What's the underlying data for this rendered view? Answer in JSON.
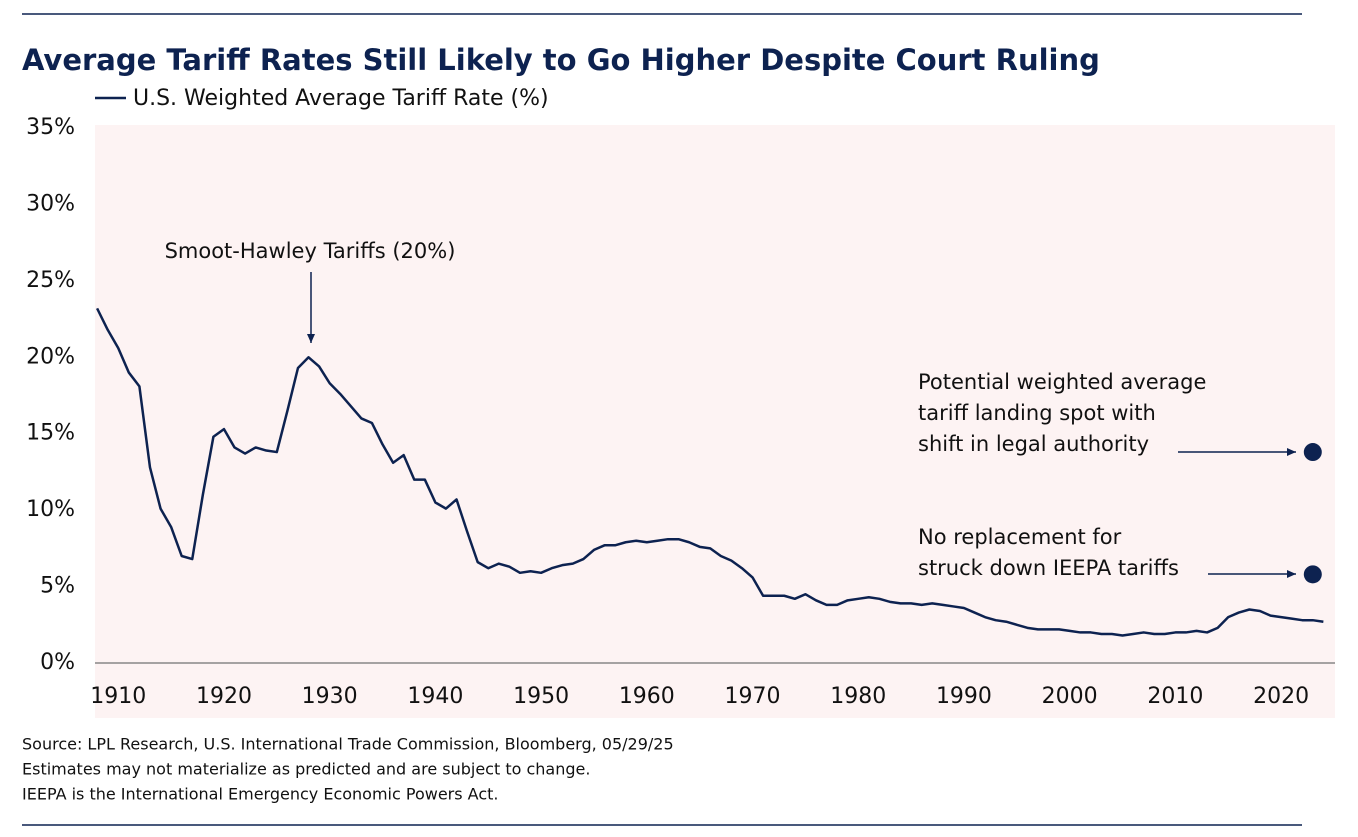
{
  "chart_data": {
    "type": "line",
    "title": "Average Tariff Rates Still Likely to Go Higher Despite Court Ruling",
    "x": [
      1908,
      1909,
      1910,
      1911,
      1912,
      1913,
      1914,
      1915,
      1916,
      1917,
      1918,
      1919,
      1920,
      1921,
      1922,
      1923,
      1924,
      1925,
      1926,
      1927,
      1928,
      1929,
      1930,
      1931,
      1932,
      1933,
      1934,
      1935,
      1936,
      1937,
      1938,
      1939,
      1940,
      1941,
      1942,
      1943,
      1944,
      1945,
      1946,
      1947,
      1948,
      1949,
      1950,
      1951,
      1952,
      1953,
      1954,
      1955,
      1956,
      1957,
      1958,
      1959,
      1960,
      1961,
      1962,
      1963,
      1964,
      1965,
      1966,
      1967,
      1968,
      1969,
      1970,
      1971,
      1972,
      1973,
      1974,
      1975,
      1976,
      1977,
      1978,
      1979,
      1980,
      1981,
      1982,
      1983,
      1984,
      1985,
      1986,
      1987,
      1988,
      1989,
      1990,
      1991,
      1992,
      1993,
      1994,
      1995,
      1996,
      1997,
      1998,
      1999,
      2000,
      2001,
      2002,
      2003,
      2004,
      2005,
      2006,
      2007,
      2008,
      2009,
      2010,
      2011,
      2012,
      2013,
      2014,
      2015,
      2016,
      2017,
      2018,
      2019,
      2020,
      2021,
      2022,
      2023,
      2024
    ],
    "series": [
      {
        "name": "U.S. Weighted Average Tariff Rate (%)",
        "color": "#0d2250",
        "values": [
          23.2,
          21.8,
          20.6,
          19.0,
          18.1,
          12.8,
          10.1,
          8.9,
          7.0,
          6.8,
          11.0,
          14.8,
          15.3,
          14.1,
          13.7,
          14.1,
          13.9,
          13.8,
          16.5,
          19.3,
          20.0,
          19.4,
          18.3,
          17.6,
          16.8,
          16.0,
          15.7,
          14.3,
          13.1,
          13.6,
          12.0,
          12.0,
          10.5,
          10.1,
          10.7,
          8.6,
          6.6,
          6.2,
          6.5,
          6.3,
          5.9,
          6.0,
          5.9,
          6.2,
          6.4,
          6.5,
          6.8,
          7.4,
          7.7,
          7.7,
          7.9,
          8.0,
          7.9,
          8.0,
          8.1,
          8.1,
          7.9,
          7.6,
          7.5,
          7.0,
          6.7,
          6.2,
          5.6,
          4.4,
          4.4,
          4.4,
          4.2,
          4.5,
          4.1,
          3.8,
          3.8,
          4.1,
          4.2,
          4.3,
          4.2,
          4.0,
          3.9,
          3.9,
          3.8,
          3.9,
          3.8,
          3.7,
          3.6,
          3.3,
          3.0,
          2.8,
          2.7,
          2.5,
          2.3,
          2.2,
          2.2,
          2.2,
          2.1,
          2.0,
          2.0,
          1.9,
          1.9,
          1.8,
          1.9,
          2.0,
          1.9,
          1.9,
          2.0,
          2.0,
          2.1,
          2.0,
          2.3,
          3.0,
          3.3,
          3.5,
          3.4,
          3.1,
          3.0,
          2.9,
          2.8,
          2.8,
          2.7
        ]
      }
    ],
    "xlim": [
      1907.8,
      2025.1
    ],
    "xticks": [
      1910,
      1920,
      1930,
      1940,
      1950,
      1960,
      1970,
      1980,
      1990,
      2000,
      2010,
      2020
    ],
    "ylim": [
      0,
      35
    ],
    "yticks": [
      {
        "value": 0,
        "label": "0%"
      },
      {
        "value": 5,
        "label": "5%"
      },
      {
        "value": 10,
        "label": "10%"
      },
      {
        "value": 15,
        "label": "15%"
      },
      {
        "value": 20,
        "label": "20%"
      },
      {
        "value": 25,
        "label": "25%"
      },
      {
        "value": 30,
        "label": "30%"
      },
      {
        "value": 35,
        "label": "35%"
      }
    ],
    "grid": false,
    "annotations": [
      {
        "lines": [
          "Smoot-Hawley Tariffs (20%)"
        ]
      },
      {
        "lines": [
          "Potential weighted average",
          "tariff landing spot with",
          "shift in legal authority"
        ],
        "x": 2023,
        "y": 13.8,
        "color": "#0d2250"
      },
      {
        "lines": [
          "No replacement for",
          "struck down IEEPA tariffs"
        ],
        "x": 2023,
        "y": 5.8,
        "color": "#0d2250"
      }
    ],
    "footnotes": [
      "Source: LPL Research, U.S. International Trade Commission, Bloomberg, 05/29/25",
      "Estimates may not materialize as predicted and are subject to change.",
      "IEEPA is the International Emergency Economic Powers Act."
    ]
  }
}
